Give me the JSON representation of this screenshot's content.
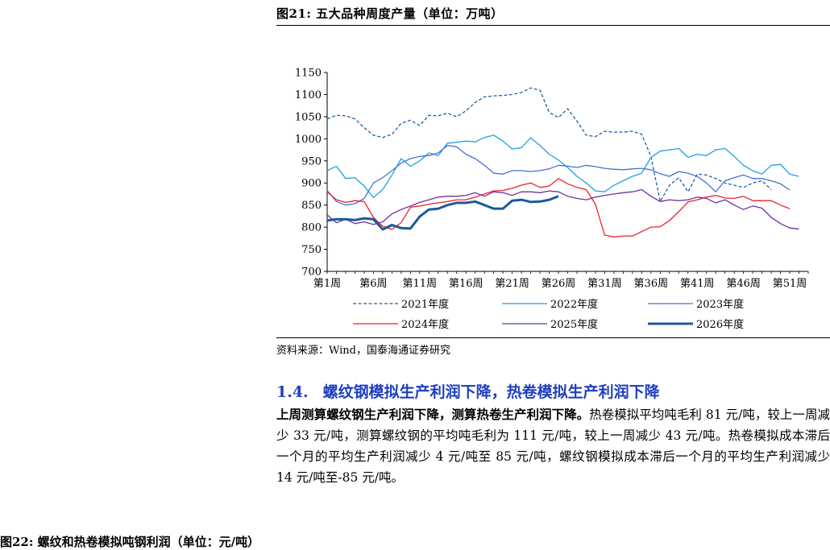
{
  "figure": {
    "title": "图21:  五大品种周度产量（单位：万吨）",
    "source": "资料来源：Wind，国泰海通证券研究"
  },
  "section": {
    "number": "1.4.",
    "title": "螺纹钢模拟生产利润下降，热卷模拟生产利润下降",
    "lead": "上周测算螺纹钢生产利润下降，测算热卷生产利润下降。",
    "body": "热卷模拟平均吨毛利 81 元/吨，较上一周减少 33 元/吨，测算螺纹钢的平均吨毛利为 111 元/吨，较上一周减少 43 元/吨。热卷模拟成本滞后一个月的平均生产利润减少 4 元/吨至 85 元/吨，螺纹钢模拟成本滞后一个月的平均生产利润减少 14 元/吨至-85 元/吨。"
  },
  "next_figure": {
    "title": "图22:  螺纹和热卷模拟吨钢利润（单位：元/吨）"
  },
  "chart_data": {
    "type": "line",
    "x_tick_labels": [
      "第1周",
      "第6周",
      "第11周",
      "第16周",
      "第21周",
      "第26周",
      "第31周",
      "第36周",
      "第41周",
      "第46周",
      "第51周"
    ],
    "x_tick_weeks": [
      1,
      6,
      11,
      16,
      21,
      26,
      31,
      36,
      41,
      46,
      51
    ],
    "x_range": [
      1,
      53
    ],
    "ylim": [
      700,
      1150
    ],
    "y_ticks": [
      700,
      750,
      800,
      850,
      900,
      950,
      1000,
      1050,
      1100,
      1150
    ],
    "legend_position": "bottom",
    "series": [
      {
        "name": "2021年度",
        "color": "#1f5fa8",
        "style": "dashed",
        "width": 1.3,
        "values": [
          1045,
          1053,
          1052,
          1045,
          1025,
          1008,
          1003,
          1010,
          1035,
          1042,
          1030,
          1053,
          1052,
          1058,
          1050,
          1063,
          1082,
          1095,
          1097,
          1098,
          1100,
          1105,
          1115,
          1110,
          1060,
          1048,
          1068,
          1040,
          1008,
          1005,
          1017,
          1015,
          1015,
          1017,
          1010,
          960,
          858,
          895,
          912,
          880,
          920,
          918,
          910,
          900,
          895,
          890,
          900,
          905,
          885
        ]
      },
      {
        "name": "2022年度",
        "color": "#21a0e0",
        "style": "solid",
        "width": 1.3,
        "values": [
          928,
          938,
          910,
          912,
          893,
          867,
          885,
          918,
          955,
          938,
          950,
          968,
          962,
          990,
          992,
          995,
          993,
          1003,
          1008,
          995,
          977,
          980,
          1002,
          985,
          965,
          952,
          935,
          915,
          900,
          882,
          880,
          895,
          905,
          915,
          922,
          958,
          972,
          975,
          978,
          958,
          965,
          962,
          975,
          978,
          960,
          940,
          928,
          920,
          940,
          942,
          920,
          915
        ]
      },
      {
        "name": "2023年度",
        "color": "#4472d6",
        "style": "solid",
        "width": 1.3,
        "values": [
          883,
          858,
          850,
          853,
          865,
          900,
          912,
          928,
          945,
          955,
          960,
          962,
          968,
          985,
          982,
          965,
          955,
          940,
          922,
          920,
          928,
          928,
          926,
          928,
          932,
          940,
          938,
          935,
          940,
          937,
          933,
          931,
          930,
          932,
          933,
          930,
          921,
          915,
          926,
          922,
          915,
          900,
          880,
          905,
          912,
          918,
          910,
          910,
          905,
          898,
          884
        ]
      },
      {
        "name": "2024年度",
        "color": "#e8232a",
        "style": "solid",
        "width": 1.3,
        "values": [
          880,
          862,
          856,
          860,
          858,
          822,
          802,
          795,
          810,
          845,
          848,
          852,
          855,
          858,
          862,
          862,
          868,
          875,
          882,
          883,
          888,
          895,
          900,
          890,
          893,
          910,
          898,
          890,
          885,
          852,
          782,
          778,
          780,
          780,
          790,
          800,
          801,
          815,
          835,
          857,
          862,
          868,
          872,
          866,
          865,
          870,
          860,
          860,
          860,
          850,
          842
        ]
      },
      {
        "name": "2025年度",
        "color": "#7030a0",
        "style": "solid",
        "width": 1.3,
        "values": [
          828,
          810,
          818,
          808,
          812,
          806,
          812,
          830,
          840,
          848,
          856,
          862,
          868,
          870,
          870,
          872,
          878,
          870,
          880,
          878,
          872,
          880,
          880,
          878,
          882,
          880,
          870,
          865,
          862,
          868,
          872,
          875,
          878,
          880,
          885,
          870,
          858,
          862,
          860,
          862,
          868,
          865,
          855,
          862,
          850,
          840,
          848,
          843,
          822,
          808,
          798,
          796
        ]
      },
      {
        "name": "2026年度",
        "color": "#1a5a9e",
        "style": "solid",
        "width": 3,
        "values": [
          815,
          818,
          818,
          816,
          820,
          818,
          795,
          805,
          798,
          797,
          824,
          840,
          842,
          850,
          855,
          855,
          858,
          850,
          842,
          842,
          860,
          862,
          857,
          858,
          862,
          870
        ]
      }
    ]
  }
}
